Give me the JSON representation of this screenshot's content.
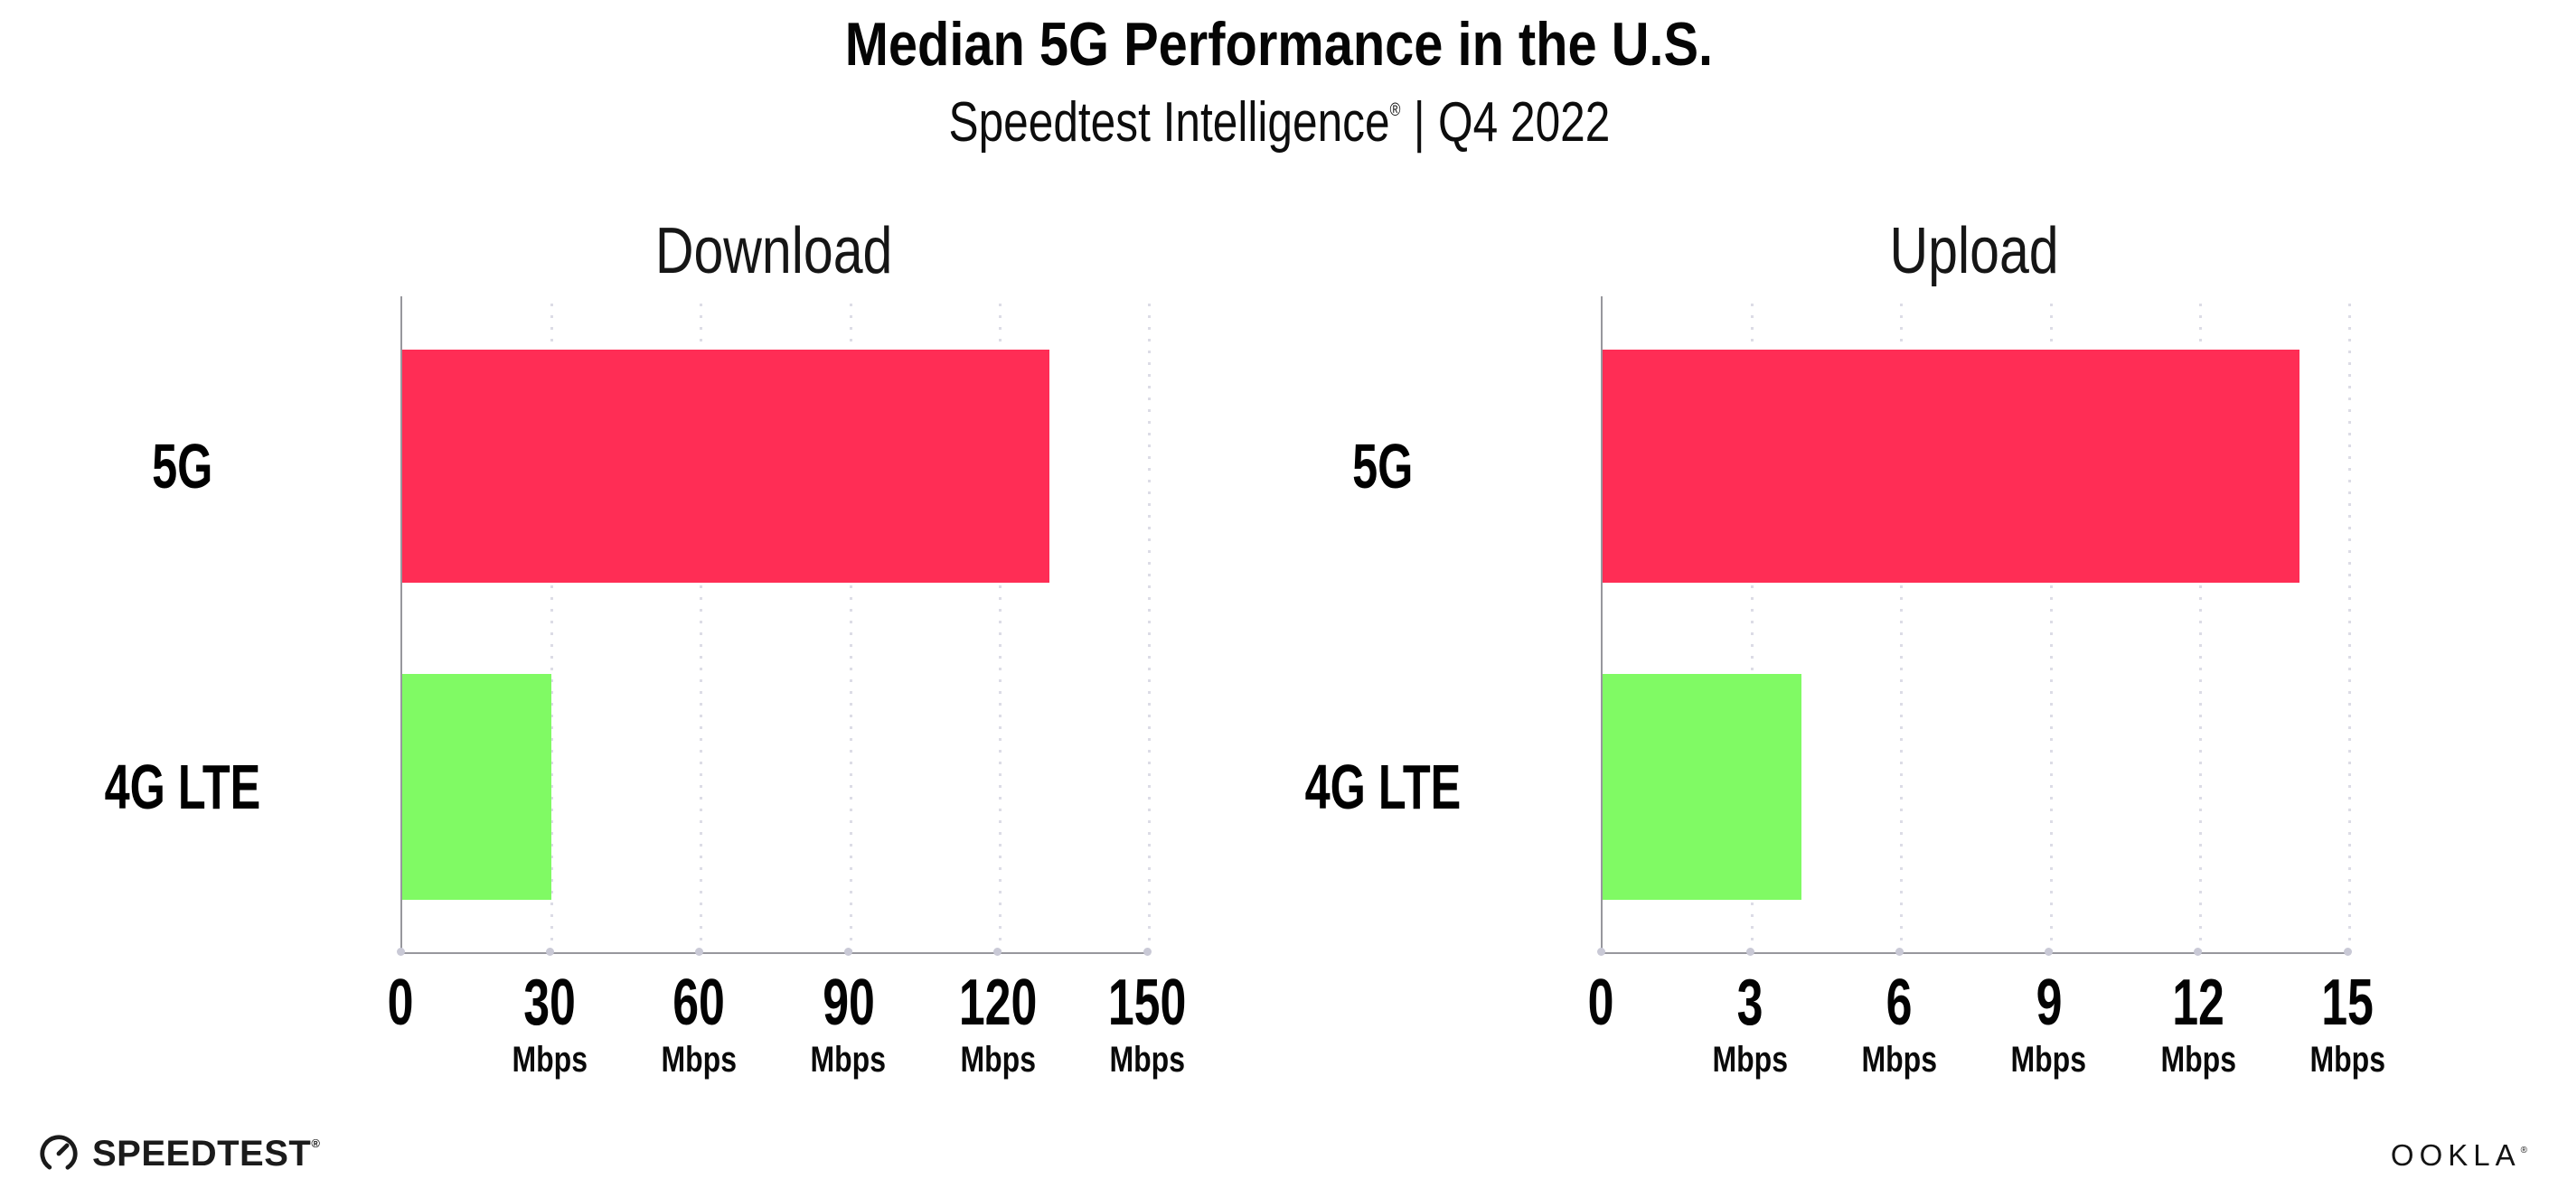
{
  "header": {
    "title": "Median 5G Performance in the U.S.",
    "subtitle_brand": "Speedtest Intelligence",
    "subtitle_reg": "®",
    "subtitle_separator": "|",
    "subtitle_period": "Q4 2022"
  },
  "colors": {
    "bar_5g": "#FF2D55",
    "bar_4g_lte": "#80FA64",
    "gridline": "#DCDCE6",
    "axis": "#97979D",
    "axis_tick_dot": "#C9C9D6"
  },
  "chart_data": [
    {
      "type": "bar",
      "orientation": "horizontal",
      "title": "Download",
      "categories": [
        "5G",
        "4G LTE"
      ],
      "values": [
        130,
        30
      ],
      "unit": "Mbps",
      "xlim": [
        0,
        150
      ],
      "xticks": [
        0,
        30,
        60,
        90,
        120,
        150
      ],
      "bar_colors": [
        "#FF2D55",
        "#80FA64"
      ],
      "grid": "dotted-vertical",
      "legend": "none"
    },
    {
      "type": "bar",
      "orientation": "horizontal",
      "title": "Upload",
      "categories": [
        "5G",
        "4G LTE"
      ],
      "values": [
        14,
        4
      ],
      "unit": "Mbps",
      "xlim": [
        0,
        15
      ],
      "xticks": [
        0,
        3,
        6,
        9,
        12,
        15
      ],
      "bar_colors": [
        "#FF2D55",
        "#80FA64"
      ],
      "grid": "dotted-vertical",
      "legend": "none"
    }
  ],
  "footer": {
    "speedtest_label": "SPEEDTEST",
    "speedtest_reg": "®",
    "ookla_label": "OOKLA",
    "ookla_reg": "®"
  }
}
